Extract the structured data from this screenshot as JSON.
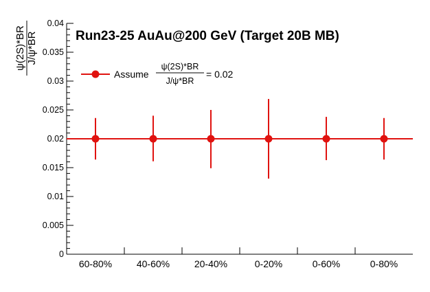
{
  "chart_data": {
    "type": "scatter",
    "title": "Run23-25 AuAu@200 GeV (Target 20B MB)",
    "ylabel": {
      "numerator": "ψ(2S)*BR",
      "denominator": "J/ψ*BR"
    },
    "xlabel": "",
    "categories": [
      "60-80%",
      "40-60%",
      "20-40%",
      "0-20%",
      "0-60%",
      "0-80%"
    ],
    "ylim": [
      0,
      0.04
    ],
    "yticks": [
      "0",
      "0.005",
      "0.01",
      "0.015",
      "0.02",
      "0.025",
      "0.03",
      "0.035",
      "0.04"
    ],
    "series": [
      {
        "name_prefix": "Assume",
        "name_numerator": "ψ(2S)*BR",
        "name_denominator": "J/ψ*BR",
        "name_suffix": "= 0.02",
        "values": [
          0.02,
          0.02,
          0.02,
          0.02,
          0.02,
          0.02
        ],
        "err_low": [
          0.0036,
          0.0039,
          0.0051,
          0.0069,
          0.0037,
          0.0036
        ],
        "err_high": [
          0.0036,
          0.004,
          0.005,
          0.0069,
          0.0038,
          0.0036
        ]
      }
    ],
    "reference_line": 0.02,
    "color": "#e0120f",
    "legend_position": "top-left",
    "grid": false
  }
}
